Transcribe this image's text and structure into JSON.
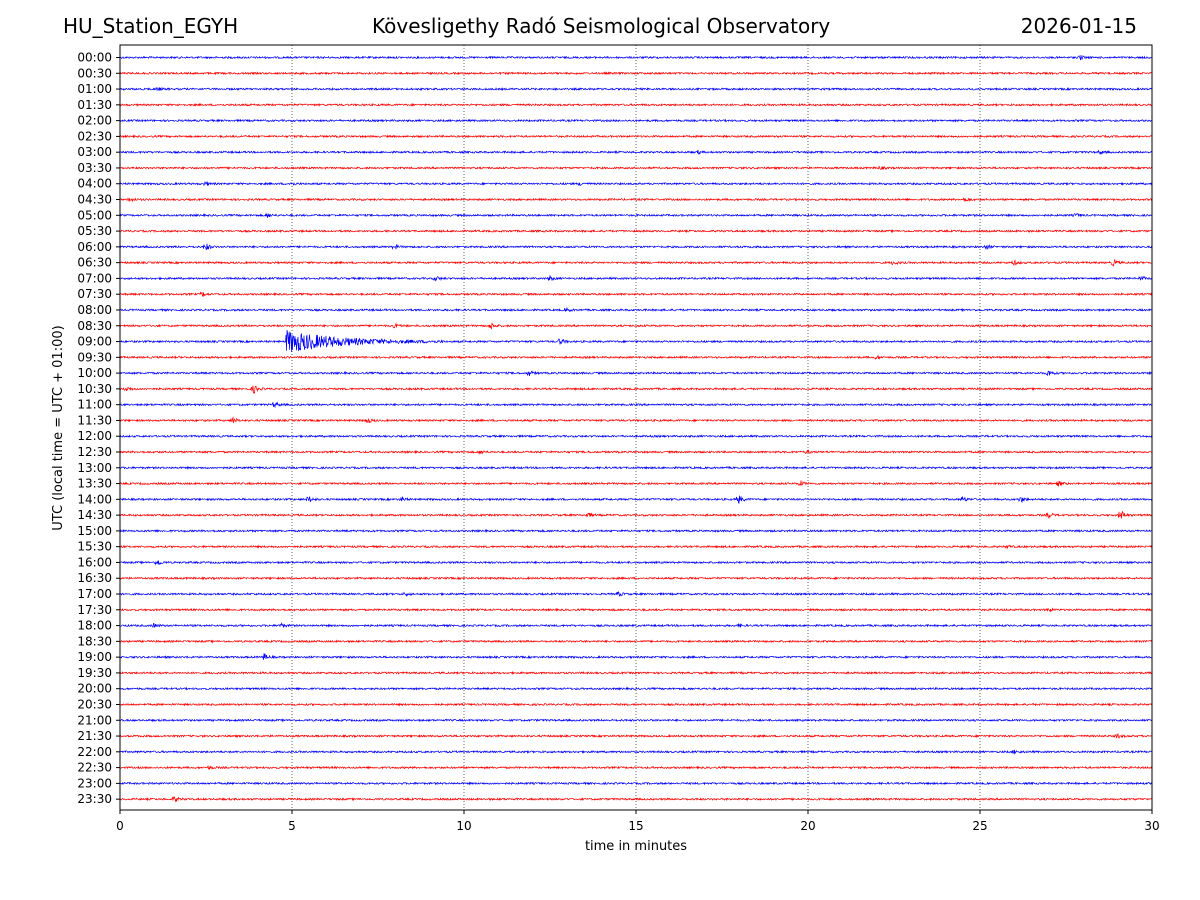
{
  "header": {
    "station": "HU_Station_EGYH",
    "title": "Kövesligethy Radó Seismological Observatory",
    "date": "2026-01-15"
  },
  "chart_data": {
    "type": "line",
    "description_kind": "helicorder",
    "xlabel": "time in minutes",
    "ylabel": "UTC (local time = UTC + 01:00)",
    "xlim": [
      0,
      30
    ],
    "x_ticks": [
      0,
      5,
      10,
      15,
      20,
      25,
      30
    ],
    "grid": "vertical dotted lines at 5, 10, 15, 20, 25 minutes",
    "colors": {
      "even_rows": "#0000ff",
      "odd_rows": "#ff0000"
    },
    "rows": [
      {
        "label": "00:00",
        "events": [
          {
            "t": 27.9,
            "amp": 2.5
          }
        ]
      },
      {
        "label": "00:30",
        "events": []
      },
      {
        "label": "01:00",
        "events": [
          {
            "t": 1.1,
            "amp": 1.5
          }
        ]
      },
      {
        "label": "01:30",
        "events": []
      },
      {
        "label": "02:00",
        "events": []
      },
      {
        "label": "02:30",
        "events": []
      },
      {
        "label": "03:00",
        "events": [
          {
            "t": 16.8,
            "amp": 1.5
          },
          {
            "t": 28.5,
            "amp": 1.5
          }
        ]
      },
      {
        "label": "03:30",
        "events": [
          {
            "t": 22.1,
            "amp": 1.5
          }
        ]
      },
      {
        "label": "04:00",
        "events": [
          {
            "t": 2.5,
            "amp": 2
          },
          {
            "t": 5.0,
            "amp": 1.5
          },
          {
            "t": 13.4,
            "amp": 1.5
          }
        ]
      },
      {
        "label": "04:30",
        "events": [
          {
            "t": 0.3,
            "amp": 2
          },
          {
            "t": 24.6,
            "amp": 2
          }
        ]
      },
      {
        "label": "05:00",
        "events": [
          {
            "t": 4.3,
            "amp": 2
          },
          {
            "t": 27.8,
            "amp": 1.5
          }
        ]
      },
      {
        "label": "05:30",
        "events": []
      },
      {
        "label": "06:00",
        "events": [
          {
            "t": 2.5,
            "amp": 4
          },
          {
            "t": 8.0,
            "amp": 2
          },
          {
            "t": 25.2,
            "amp": 2
          }
        ]
      },
      {
        "label": "06:30",
        "events": [
          {
            "t": 22.5,
            "amp": 2
          },
          {
            "t": 26.0,
            "amp": 2
          },
          {
            "t": 28.9,
            "amp": 3
          }
        ]
      },
      {
        "label": "07:00",
        "events": [
          {
            "t": 9.2,
            "amp": 2
          },
          {
            "t": 12.5,
            "amp": 2
          },
          {
            "t": 29.7,
            "amp": 2
          }
        ]
      },
      {
        "label": "07:30",
        "events": [
          {
            "t": 2.4,
            "amp": 2
          }
        ]
      },
      {
        "label": "08:00",
        "events": [
          {
            "t": 13.0,
            "amp": 1.5
          }
        ]
      },
      {
        "label": "08:30",
        "events": [
          {
            "t": 10.8,
            "amp": 3
          },
          {
            "t": 8.0,
            "amp": 2
          }
        ]
      },
      {
        "label": "09:00",
        "events": [
          {
            "t": 4.9,
            "amp": 11,
            "duration": 4.5
          },
          {
            "t": 12.8,
            "amp": 3
          }
        ]
      },
      {
        "label": "09:30",
        "events": [
          {
            "t": 22.0,
            "amp": 1.5
          }
        ]
      },
      {
        "label": "10:00",
        "events": [
          {
            "t": 11.9,
            "amp": 2.5
          },
          {
            "t": 27.0,
            "amp": 3
          }
        ]
      },
      {
        "label": "10:30",
        "events": [
          {
            "t": 0.2,
            "amp": 2
          },
          {
            "t": 3.9,
            "amp": 4
          }
        ]
      },
      {
        "label": "11:00",
        "events": [
          {
            "t": 4.5,
            "amp": 2.5
          }
        ]
      },
      {
        "label": "11:30",
        "events": [
          {
            "t": 3.3,
            "amp": 3
          },
          {
            "t": 7.2,
            "amp": 2.5
          }
        ]
      },
      {
        "label": "12:00",
        "events": []
      },
      {
        "label": "12:30",
        "events": [
          {
            "t": 10.5,
            "amp": 1.5
          },
          {
            "t": 20.0,
            "amp": 1.5
          }
        ]
      },
      {
        "label": "13:00",
        "events": []
      },
      {
        "label": "13:30",
        "events": [
          {
            "t": 19.8,
            "amp": 2.5
          },
          {
            "t": 27.3,
            "amp": 2.5
          }
        ]
      },
      {
        "label": "14:00",
        "events": [
          {
            "t": 5.5,
            "amp": 3
          },
          {
            "t": 8.2,
            "amp": 2
          },
          {
            "t": 18.0,
            "amp": 4
          },
          {
            "t": 24.5,
            "amp": 2.5
          },
          {
            "t": 26.2,
            "amp": 2.5
          }
        ]
      },
      {
        "label": "14:30",
        "events": [
          {
            "t": 13.6,
            "amp": 2.5
          },
          {
            "t": 27.0,
            "amp": 2.5
          },
          {
            "t": 29.1,
            "amp": 5
          }
        ]
      },
      {
        "label": "15:00",
        "events": []
      },
      {
        "label": "15:30",
        "events": [
          {
            "t": 25.8,
            "amp": 1.5
          }
        ]
      },
      {
        "label": "16:00",
        "events": [
          {
            "t": 1.1,
            "amp": 3
          }
        ]
      },
      {
        "label": "16:30",
        "events": []
      },
      {
        "label": "17:00",
        "events": [
          {
            "t": 8.3,
            "amp": 1.5
          },
          {
            "t": 14.5,
            "amp": 2
          }
        ]
      },
      {
        "label": "17:30",
        "events": [
          {
            "t": 27.0,
            "amp": 1.5
          }
        ]
      },
      {
        "label": "18:00",
        "events": [
          {
            "t": 1.0,
            "amp": 2
          },
          {
            "t": 4.7,
            "amp": 2
          },
          {
            "t": 18.0,
            "amp": 1.5
          }
        ]
      },
      {
        "label": "18:30",
        "events": []
      },
      {
        "label": "19:00",
        "events": [
          {
            "t": 4.2,
            "amp": 3.5
          }
        ]
      },
      {
        "label": "19:30",
        "events": []
      },
      {
        "label": "20:00",
        "events": []
      },
      {
        "label": "20:30",
        "events": []
      },
      {
        "label": "21:00",
        "events": []
      },
      {
        "label": "21:30",
        "events": [
          {
            "t": 29.0,
            "amp": 2
          }
        ]
      },
      {
        "label": "22:00",
        "events": [
          {
            "t": 26.0,
            "amp": 1.5
          }
        ]
      },
      {
        "label": "22:30",
        "events": [
          {
            "t": 2.6,
            "amp": 1.5
          }
        ]
      },
      {
        "label": "23:00",
        "events": []
      },
      {
        "label": "23:30",
        "events": [
          {
            "t": 1.6,
            "amp": 2.5
          }
        ]
      }
    ]
  }
}
